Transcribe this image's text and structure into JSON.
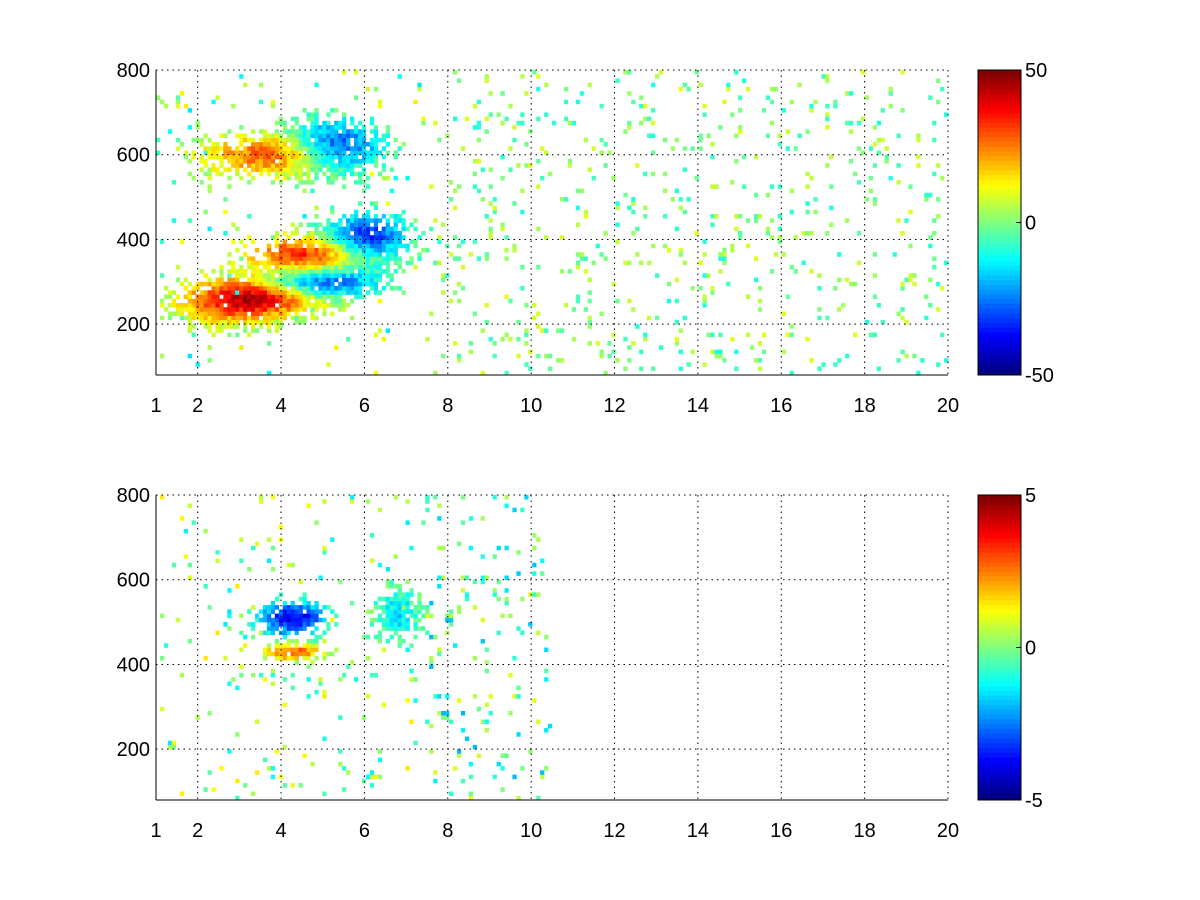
{
  "chart_data": [
    {
      "type": "heatmap",
      "title": "",
      "xlabel": "",
      "ylabel": "",
      "xlim": [
        1,
        20
      ],
      "ylim": [
        80,
        800
      ],
      "xticks": [
        1,
        2,
        4,
        6,
        8,
        10,
        12,
        14,
        16,
        18,
        20
      ],
      "yticks": [
        200,
        400,
        600,
        800
      ],
      "grid": true,
      "colormap": "jet",
      "clim": [
        -50,
        50
      ],
      "colorbar": {
        "ticks": [
          -50,
          0,
          50
        ],
        "labels": [
          "-50",
          "0",
          "50"
        ]
      },
      "features": [
        {
          "x": 3.5,
          "y": 270,
          "value": 45,
          "spread_x": 1.6,
          "spread_y": 45
        },
        {
          "x": 4.8,
          "y": 360,
          "value": 40,
          "spread_x": 1.5,
          "spread_y": 50
        },
        {
          "x": 4.8,
          "y": 300,
          "value": -45,
          "spread_x": 1.4,
          "spread_y": 40
        },
        {
          "x": 6.0,
          "y": 400,
          "value": -40,
          "spread_x": 1.0,
          "spread_y": 60
        },
        {
          "x": 3.8,
          "y": 600,
          "value": 30,
          "spread_x": 1.6,
          "spread_y": 50
        },
        {
          "x": 5.3,
          "y": 620,
          "value": -35,
          "spread_x": 1.1,
          "spread_y": 60
        },
        {
          "x": 2.8,
          "y": 230,
          "value": 15,
          "spread_x": 1.2,
          "spread_y": 40
        }
      ],
      "sparse_noise": {
        "xrange": [
          7.5,
          20
        ],
        "values": [
          -10,
          10
        ]
      }
    },
    {
      "type": "heatmap",
      "title": "",
      "xlabel": "",
      "ylabel": "",
      "xlim": [
        1,
        20
      ],
      "ylim": [
        80,
        800
      ],
      "xticks": [
        1,
        2,
        4,
        6,
        8,
        10,
        12,
        14,
        16,
        18,
        20
      ],
      "yticks": [
        200,
        400,
        600,
        800
      ],
      "grid": true,
      "colormap": "jet",
      "clim": [
        -5,
        5
      ],
      "colorbar": {
        "ticks": [
          -5,
          0,
          5
        ],
        "labels": [
          "-5",
          "0",
          "5"
        ]
      },
      "features": [
        {
          "x": 4.3,
          "y": 430,
          "value": 3,
          "spread_x": 0.7,
          "spread_y": 20
        },
        {
          "x": 4.3,
          "y": 510,
          "value": -4,
          "spread_x": 0.8,
          "spread_y": 40
        },
        {
          "x": 6.8,
          "y": 520,
          "value": -1.5,
          "spread_x": 0.5,
          "spread_y": 60
        }
      ],
      "sparse_noise": {
        "xrange": [
          7.5,
          10.5
        ],
        "values": [
          -2,
          1
        ]
      }
    }
  ]
}
